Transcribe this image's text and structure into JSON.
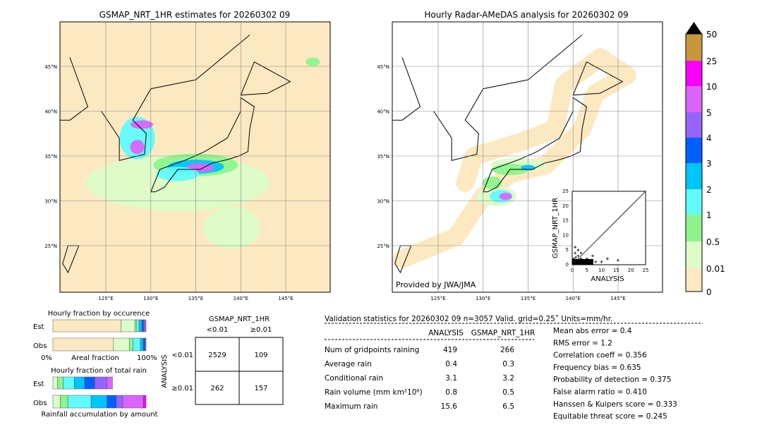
{
  "left_map": {
    "title": "GSMAP_NRT_1HR estimates for 20260302 09"
  },
  "right_map": {
    "title": "Hourly Radar-AMeDAS analysis for 20260302 09",
    "credit": "Provided by JWA/JMA"
  },
  "map_axes": {
    "lon_ticks": [
      "125°E",
      "130°E",
      "135°E",
      "140°E",
      "145°E"
    ],
    "lat_ticks": [
      "45°N",
      "40°N",
      "35°N",
      "30°N",
      "25°N"
    ]
  },
  "colorbar": {
    "levels": [
      "0",
      "0.01",
      "0.5",
      "1",
      "2",
      "3",
      "4",
      "5",
      "10",
      "25",
      "50"
    ],
    "colors": [
      "#fde9c1",
      "#dcfcc8",
      "#8ef58e",
      "#60fcfc",
      "#00c4fc",
      "#0060fc",
      "#9664fc",
      "#dc64fc",
      "#fc00fc",
      "#c8963c"
    ],
    "extend_color": "#000000"
  },
  "scatter": {
    "xlabel": "ANALYSIS",
    "ylabel": "GSMAP_NRT_1HR",
    "ticks": [
      "0",
      "5",
      "10",
      "15",
      "20",
      "25"
    ]
  },
  "occurrence": {
    "title": "Hourly fraction by occurence",
    "rows": [
      "Est",
      "Obs"
    ],
    "xlabel": "Areal fraction",
    "x0": "0%",
    "x1": "100%",
    "est": [
      0.73,
      0.15,
      0.02,
      0.025,
      0.03,
      0.02,
      0.015,
      0.01
    ],
    "obs": [
      0.65,
      0.17,
      0.04,
      0.08,
      0.03,
      0.02,
      0.01
    ]
  },
  "total_rain": {
    "title": "Hourly fraction of total rain",
    "rows": [
      "Est",
      "Obs"
    ],
    "xlabel": "Rainfall accumulation by amount",
    "est": [
      0.05,
      0.06,
      0.12,
      0.11,
      0.11,
      0.13,
      0.06
    ],
    "obs": [
      0.08,
      0.08,
      0.25,
      0.17,
      0.1,
      0.07,
      0.22,
      0.03
    ]
  },
  "contingency": {
    "title": "GSMAP_NRT_1HR",
    "col_labels": [
      "<0.01",
      "≥0.01"
    ],
    "row_title": "ANALYSIS",
    "row_labels": [
      "<0.01",
      "≥0.01"
    ],
    "cells": [
      [
        "2529",
        "109"
      ],
      [
        "262",
        "157"
      ]
    ]
  },
  "validation": {
    "header": "Validation statistics for 20260302 09  n=3057 Valid. grid=0.25˚ Units=mm/hr.",
    "col_headers": [
      "ANALYSIS",
      "GSMAP_NRT_1HR"
    ],
    "rows": [
      {
        "label": "Num of gridpoints raining",
        "a": "419",
        "g": "266"
      },
      {
        "label": "Average rain",
        "a": "0.4",
        "g": "0.3"
      },
      {
        "label": "Conditional rain",
        "a": "3.1",
        "g": "3.2"
      },
      {
        "label": "Rain volume (mm km²10⁶)",
        "a": "0.8",
        "g": "0.5"
      },
      {
        "label": "Maximum rain",
        "a": "15.6",
        "g": "6.5"
      }
    ],
    "scores": [
      "Mean abs error =    0.4",
      "RMS error =    1.2",
      "Correlation coeff =  0.356",
      "Frequency bias =  0.635",
      "Probability of detection =  0.375",
      "False alarm ratio =  0.410",
      "Hanssen & Kuipers score =  0.333",
      "Equitable threat score =  0.245"
    ]
  }
}
